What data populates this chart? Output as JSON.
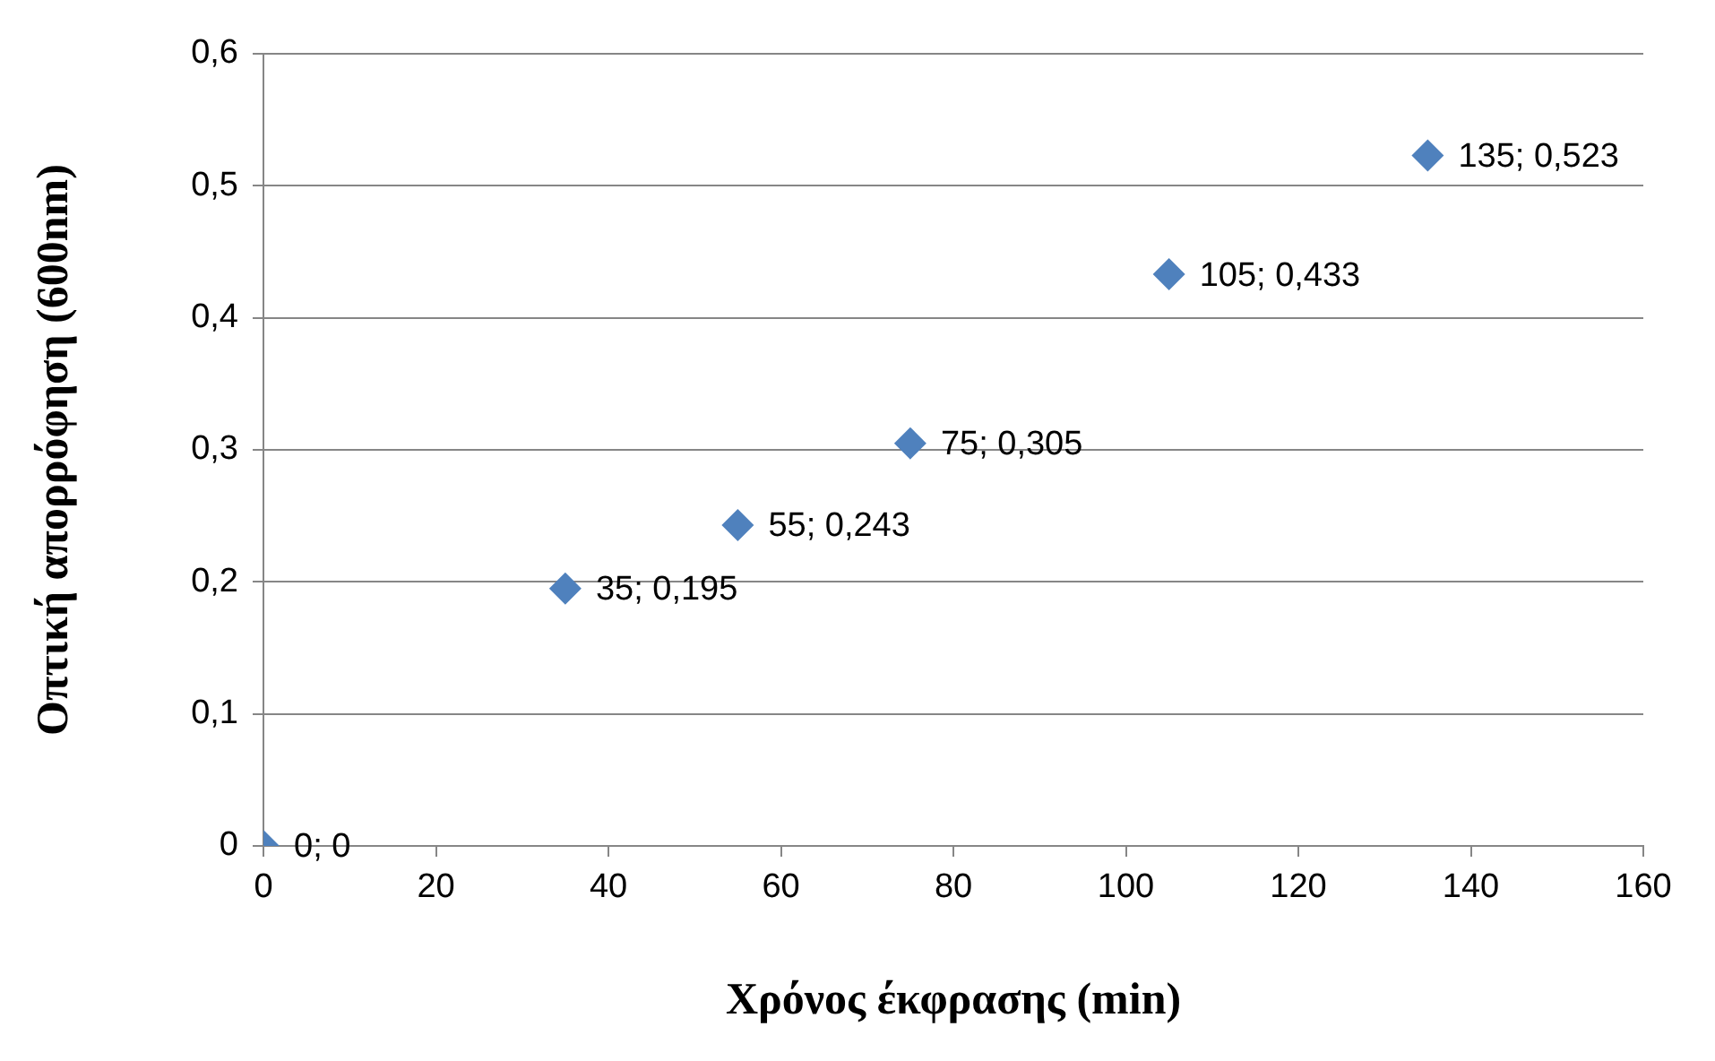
{
  "chart_data": {
    "type": "scatter",
    "xlabel": "Χρόνος έκφρασης (min)",
    "ylabel": "Οπτική απορρόφηση (600nm)",
    "x": [
      0,
      35,
      55,
      75,
      105,
      135
    ],
    "values": [
      0,
      0.195,
      0.243,
      0.305,
      0.433,
      0.523
    ],
    "value_labels": [
      "0; 0",
      "35; 0,195",
      "55; 0,243",
      "75; 0,305",
      "105; 0,433",
      "135; 0,523"
    ],
    "color": "#4f81bd",
    "marker": "diamond",
    "grid": "y",
    "legend": false,
    "xlim": [
      0,
      160
    ],
    "xticks": [
      0,
      20,
      40,
      60,
      80,
      100,
      120,
      140,
      160
    ],
    "ylim": [
      0,
      0.6
    ],
    "yticks": [
      0,
      {
        "value": 0.1,
        "label": "0,1"
      },
      {
        "value": 0.2,
        "label": "0,2"
      },
      {
        "value": 0.3,
        "label": "0,3"
      },
      {
        "value": 0.4,
        "label": "0,4"
      },
      {
        "value": 0.5,
        "label": "0,5"
      },
      {
        "value": 0.6,
        "label": "0,6"
      }
    ]
  }
}
